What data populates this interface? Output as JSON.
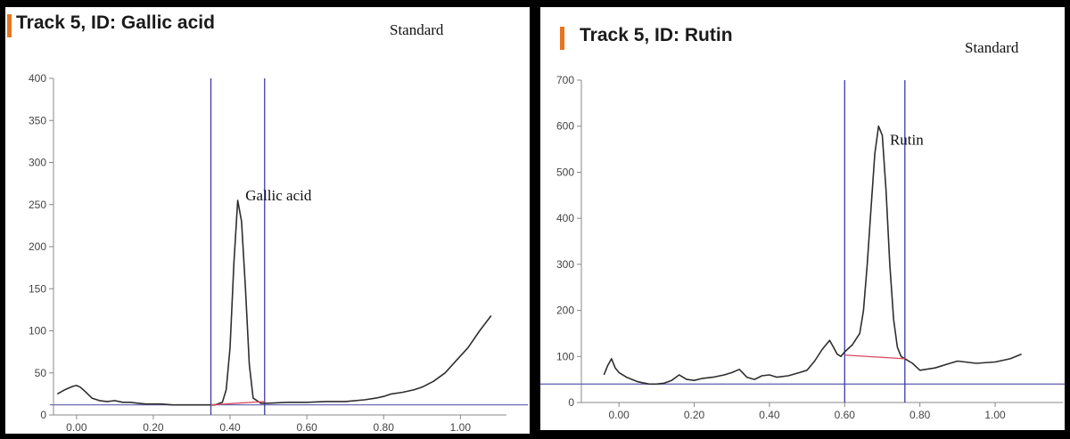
{
  "colors": {
    "background": "#000000",
    "panel": "#ffffff",
    "accent_bar": "#e8761e",
    "trace": "#2e2e2e",
    "window_lines": "#3b3ba8",
    "baseline_line": "#6a6ab8",
    "peak_baseline": "#d9485a",
    "axis": "#888888"
  },
  "panels": [
    {
      "title": "Track 5, ID: Gallic acid",
      "standard_label": "Standard"
    },
    {
      "title": "Track 5, ID: Rutin",
      "standard_label": "Standard"
    }
  ],
  "chart_data": [
    {
      "type": "line",
      "title": "Track 5, ID: Gallic acid",
      "xlabel": "",
      "ylabel": "",
      "xlim": [
        -0.06,
        1.12
      ],
      "ylim": [
        0,
        400
      ],
      "grid": false,
      "x_ticks": [
        0.0,
        0.2,
        0.4,
        0.6,
        0.8,
        1.0
      ],
      "x_tick_labels": [
        "0.00",
        "0.20",
        "0.40",
        "0.60",
        "0.80",
        "1.00"
      ],
      "y_ticks": [
        0,
        50,
        100,
        150,
        200,
        250,
        300,
        350,
        400
      ],
      "y_tick_labels": [
        "0",
        "50",
        "100",
        "150",
        "200",
        "250",
        "300",
        "350",
        "400"
      ],
      "window": [
        0.35,
        0.49
      ],
      "horizontal_line": 12,
      "peak_baseline": [
        [
          0.35,
          12
        ],
        [
          0.49,
          16
        ]
      ],
      "annotation": {
        "text": "Gallic acid",
        "x": 0.44,
        "y": 255
      },
      "series": [
        {
          "x": [
            -0.05,
            -0.03,
            -0.01,
            0.0,
            0.01,
            0.02,
            0.04,
            0.06,
            0.08,
            0.1,
            0.12,
            0.14,
            0.16,
            0.18,
            0.2,
            0.22,
            0.25,
            0.28,
            0.31,
            0.34,
            0.36,
            0.38,
            0.39,
            0.4,
            0.41,
            0.42,
            0.43,
            0.44,
            0.45,
            0.46,
            0.48,
            0.5,
            0.55,
            0.6,
            0.65,
            0.7,
            0.75,
            0.78,
            0.8,
            0.82,
            0.85,
            0.88,
            0.9,
            0.93,
            0.96,
            0.99,
            1.02,
            1.05,
            1.08
          ],
          "y": [
            25,
            30,
            34,
            35,
            33,
            29,
            20,
            17,
            16,
            17,
            15,
            15,
            14,
            13,
            13,
            13,
            12,
            12,
            12,
            12,
            12,
            15,
            30,
            80,
            180,
            255,
            230,
            150,
            60,
            20,
            14,
            14,
            15,
            15,
            16,
            16,
            18,
            20,
            22,
            25,
            27,
            30,
            33,
            40,
            50,
            65,
            80,
            100,
            118
          ]
        }
      ]
    },
    {
      "type": "line",
      "title": "Track 5, ID: Rutin",
      "xlabel": "",
      "ylabel": "",
      "xlim": [
        -0.1,
        1.18
      ],
      "ylim": [
        0,
        700
      ],
      "grid": false,
      "x_ticks": [
        0.0,
        0.2,
        0.4,
        0.6,
        0.8,
        1.0
      ],
      "x_tick_labels": [
        "0.00",
        "0.20",
        "0.40",
        "0.60",
        "0.80",
        "1.00"
      ],
      "y_ticks": [
        0,
        100,
        200,
        300,
        400,
        500,
        600,
        700
      ],
      "y_tick_labels": [
        "0",
        "100",
        "200",
        "300",
        "400",
        "500",
        "600",
        "700"
      ],
      "window": [
        0.6,
        0.76
      ],
      "horizontal_line": 40,
      "peak_baseline": [
        [
          0.6,
          103
        ],
        [
          0.76,
          95
        ]
      ],
      "annotation": {
        "text": "Rutin",
        "x": 0.72,
        "y": 560
      },
      "series": [
        {
          "x": [
            -0.04,
            -0.03,
            -0.02,
            -0.01,
            0.0,
            0.02,
            0.05,
            0.08,
            0.1,
            0.12,
            0.14,
            0.16,
            0.18,
            0.2,
            0.22,
            0.25,
            0.28,
            0.3,
            0.32,
            0.34,
            0.36,
            0.38,
            0.4,
            0.42,
            0.45,
            0.48,
            0.5,
            0.52,
            0.54,
            0.56,
            0.57,
            0.58,
            0.59,
            0.6,
            0.62,
            0.64,
            0.65,
            0.66,
            0.67,
            0.68,
            0.69,
            0.7,
            0.71,
            0.72,
            0.73,
            0.74,
            0.75,
            0.76,
            0.78,
            0.8,
            0.84,
            0.88,
            0.9,
            0.95,
            1.0,
            1.04,
            1.07
          ],
          "y": [
            60,
            80,
            95,
            75,
            65,
            55,
            45,
            40,
            40,
            42,
            48,
            60,
            50,
            48,
            52,
            55,
            60,
            65,
            72,
            55,
            50,
            58,
            60,
            55,
            58,
            65,
            70,
            90,
            115,
            135,
            120,
            105,
            100,
            110,
            125,
            150,
            200,
            300,
            420,
            540,
            600,
            580,
            460,
            300,
            180,
            120,
            100,
            95,
            85,
            70,
            75,
            85,
            90,
            85,
            88,
            95,
            105
          ]
        }
      ]
    }
  ]
}
